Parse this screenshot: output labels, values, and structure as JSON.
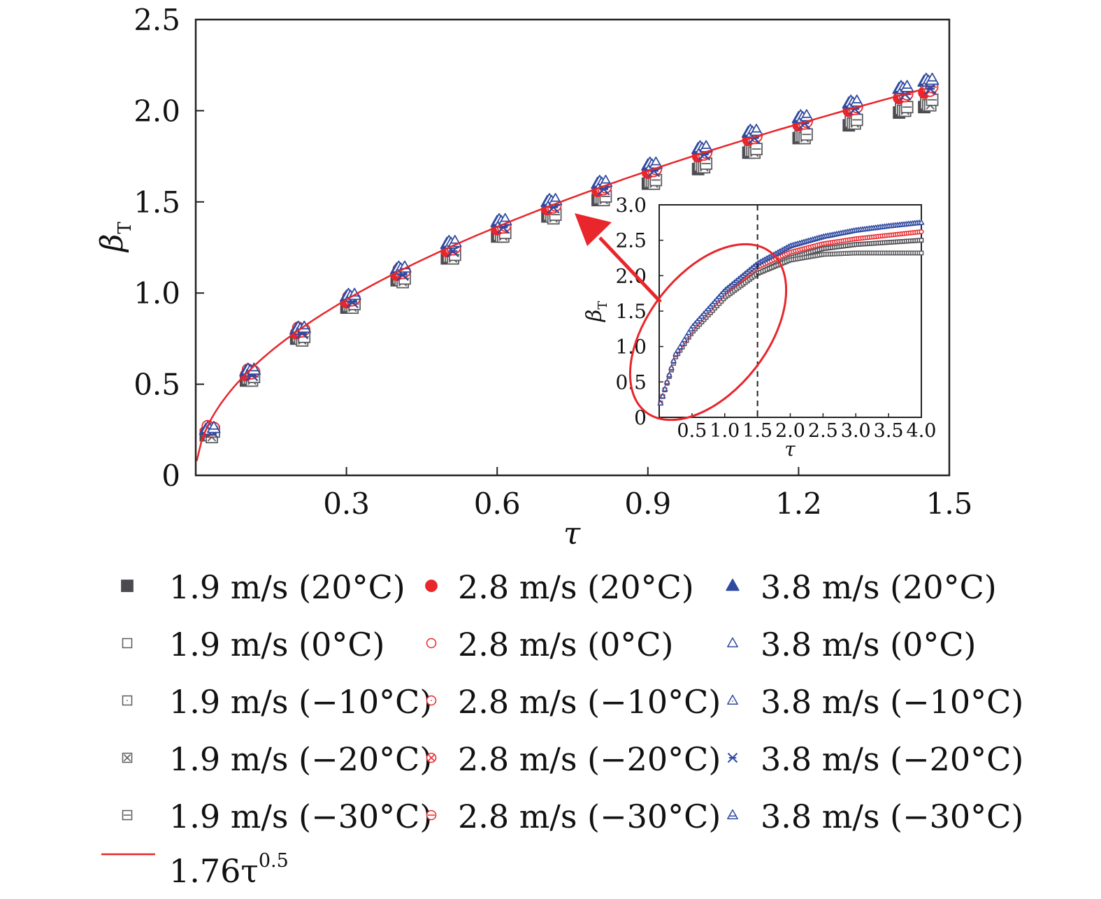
{
  "chart_data": [
    {
      "type": "scatter",
      "xlabel": "τ",
      "ylabel": "β",
      "ylabel_subscript": "T",
      "xlim": [
        0,
        1.5
      ],
      "ylim": [
        0,
        2.5
      ],
      "xticks": [
        "0.3",
        "0.6",
        "0.9",
        "1.2",
        "1.5"
      ],
      "xtick_values": [
        0.3,
        0.6,
        0.9,
        1.2,
        1.5
      ],
      "yticks": [
        "0",
        "0.5",
        "1.0",
        "1.5",
        "2.0",
        "2.5"
      ],
      "ytick_values": [
        0,
        0.5,
        1.0,
        1.5,
        2.0,
        2.5
      ],
      "grid": false,
      "legend_placement": "below",
      "x": [
        0.02,
        0.1,
        0.2,
        0.3,
        0.4,
        0.5,
        0.6,
        0.7,
        0.8,
        0.9,
        1.0,
        1.1,
        1.2,
        1.3,
        1.4,
        1.45
      ],
      "series": [
        {
          "name": "1.9 m/s (20°C)",
          "color": "#4a4a50",
          "marker": "square-filled",
          "values": [
            0.22,
            0.52,
            0.75,
            0.92,
            1.07,
            1.19,
            1.31,
            1.42,
            1.51,
            1.6,
            1.68,
            1.77,
            1.85,
            1.92,
            1.99,
            2.02
          ]
        },
        {
          "name": "1.9 m/s (0°C)",
          "color": "#5a5a5e",
          "marker": "square-open",
          "values": [
            0.23,
            0.53,
            0.76,
            0.93,
            1.08,
            1.2,
            1.32,
            1.43,
            1.52,
            1.61,
            1.7,
            1.78,
            1.86,
            1.94,
            2.01,
            2.04
          ]
        },
        {
          "name": "1.9 m/s (−10°C)",
          "color": "#5a5a5e",
          "marker": "square-dot",
          "values": [
            0.22,
            0.53,
            0.75,
            0.93,
            1.07,
            1.2,
            1.31,
            1.42,
            1.52,
            1.61,
            1.69,
            1.78,
            1.86,
            1.93,
            2.0,
            2.03
          ]
        },
        {
          "name": "1.9 m/s (−20°C)",
          "color": "#5a5a5e",
          "marker": "square-x",
          "values": [
            0.21,
            0.52,
            0.74,
            0.92,
            1.06,
            1.19,
            1.31,
            1.41,
            1.51,
            1.6,
            1.69,
            1.77,
            1.85,
            1.93,
            2.0,
            2.03
          ]
        },
        {
          "name": "1.9 m/s (−30°C)",
          "color": "#5a5a5e",
          "marker": "square-line",
          "values": [
            0.24,
            0.54,
            0.76,
            0.94,
            1.08,
            1.21,
            1.33,
            1.43,
            1.53,
            1.62,
            1.71,
            1.79,
            1.87,
            1.95,
            2.02,
            2.06
          ]
        },
        {
          "name": "2.8 m/s (20°C)",
          "color": "#e8262b",
          "marker": "circle-filled",
          "values": [
            0.24,
            0.55,
            0.78,
            0.95,
            1.1,
            1.23,
            1.35,
            1.46,
            1.56,
            1.66,
            1.75,
            1.84,
            1.92,
            2.0,
            2.07,
            2.1
          ]
        },
        {
          "name": "2.8 m/s (0°C)",
          "color": "#e8262b",
          "marker": "circle-open",
          "values": [
            0.27,
            0.58,
            0.81,
            0.98,
            1.13,
            1.26,
            1.38,
            1.49,
            1.59,
            1.69,
            1.78,
            1.87,
            1.95,
            2.03,
            2.1,
            2.14
          ]
        },
        {
          "name": "2.8 m/s (−10°C)",
          "color": "#e8262b",
          "marker": "circle-dot",
          "values": [
            0.25,
            0.56,
            0.79,
            0.96,
            1.11,
            1.24,
            1.36,
            1.47,
            1.57,
            1.67,
            1.76,
            1.85,
            1.93,
            2.01,
            2.08,
            2.12
          ]
        },
        {
          "name": "2.8 m/s (−20°C)",
          "color": "#e8262b",
          "marker": "circle-x",
          "values": [
            0.25,
            0.56,
            0.79,
            0.96,
            1.11,
            1.24,
            1.36,
            1.47,
            1.57,
            1.67,
            1.76,
            1.85,
            1.93,
            2.01,
            2.08,
            2.11
          ]
        },
        {
          "name": "2.8 m/s (−30°C)",
          "color": "#e8262b",
          "marker": "circle-line",
          "values": [
            0.26,
            0.57,
            0.8,
            0.97,
            1.12,
            1.25,
            1.37,
            1.48,
            1.58,
            1.68,
            1.77,
            1.86,
            1.94,
            2.02,
            2.09,
            2.13
          ]
        },
        {
          "name": "3.8 m/s (20°C)",
          "color": "#2f4aa0",
          "marker": "triangle-filled",
          "values": [
            0.25,
            0.57,
            0.8,
            0.98,
            1.13,
            1.27,
            1.39,
            1.5,
            1.6,
            1.7,
            1.79,
            1.88,
            1.96,
            2.04,
            2.12,
            2.16
          ]
        },
        {
          "name": "3.8 m/s (0°C)",
          "color": "#2f4aa0",
          "marker": "triangle-open",
          "values": [
            0.26,
            0.58,
            0.81,
            0.99,
            1.14,
            1.28,
            1.4,
            1.51,
            1.61,
            1.71,
            1.8,
            1.89,
            1.97,
            2.05,
            2.13,
            2.17
          ]
        },
        {
          "name": "3.8 m/s (−10°C)",
          "color": "#2f4aa0",
          "marker": "triangle-dot",
          "values": [
            0.25,
            0.57,
            0.8,
            0.98,
            1.13,
            1.27,
            1.39,
            1.5,
            1.6,
            1.7,
            1.79,
            1.88,
            1.96,
            2.04,
            2.12,
            2.16
          ]
        },
        {
          "name": "3.8 m/s (−20°C)",
          "color": "#2f4aa0",
          "marker": "star-x",
          "values": [
            0.24,
            0.55,
            0.78,
            0.95,
            1.1,
            1.23,
            1.36,
            1.47,
            1.57,
            1.67,
            1.76,
            1.85,
            1.93,
            2.01,
            2.09,
            2.12
          ]
        },
        {
          "name": "3.8 m/s (−30°C)",
          "color": "#2f4aa0",
          "marker": "triangle-line",
          "values": [
            0.26,
            0.58,
            0.81,
            0.99,
            1.14,
            1.28,
            1.4,
            1.51,
            1.61,
            1.71,
            1.8,
            1.89,
            1.97,
            2.05,
            2.13,
            2.17
          ]
        }
      ],
      "fit": {
        "name": "1.76τ",
        "name_superscript": "0.5",
        "coefficient": 1.76,
        "exponent": 0.5,
        "color": "#e8262b"
      }
    },
    {
      "type": "scatter",
      "role": "inset",
      "xlabel": "τ",
      "ylabel": "β",
      "ylabel_subscript": "T",
      "xlim": [
        0,
        4.0
      ],
      "ylim": [
        0,
        3.0
      ],
      "xticks": [
        "0.5",
        "1.0",
        "1.5",
        "2.0",
        "2.5",
        "3.0",
        "3.5",
        "4.0"
      ],
      "xtick_values": [
        0.5,
        1.0,
        1.5,
        2.0,
        2.5,
        3.0,
        3.5,
        4.0
      ],
      "yticks": [
        "0",
        "0.5",
        "1.0",
        "1.5",
        "2.0",
        "2.5",
        "3.0"
      ],
      "ytick_values": [
        0,
        0.5,
        1.0,
        1.5,
        2.0,
        2.5,
        3.0
      ],
      "dashed_line_x": 1.5,
      "x": [
        0.02,
        0.25,
        0.5,
        1.0,
        1.5,
        2.0,
        2.5,
        3.0,
        3.5,
        4.0
      ],
      "series": [
        {
          "name": "1.9 m/s (20°C)",
          "color": "#4a4a50",
          "values": [
            0.2,
            0.85,
            1.2,
            1.69,
            2.03,
            2.25,
            2.38,
            2.44,
            2.47,
            2.5
          ]
        },
        {
          "name": "1.9 m/s (−30°C)",
          "color": "#5a5a5e",
          "values": [
            0.2,
            0.85,
            1.2,
            1.69,
            2.03,
            2.22,
            2.3,
            2.32,
            2.32,
            2.32
          ]
        },
        {
          "name": "2.8 m/s (20°C)",
          "color": "#e8262b",
          "values": [
            0.2,
            0.88,
            1.24,
            1.76,
            2.12,
            2.33,
            2.45,
            2.52,
            2.57,
            2.62
          ]
        },
        {
          "name": "3.8 m/s (20°C)",
          "color": "#2f4aa0",
          "values": [
            0.2,
            0.89,
            1.27,
            1.79,
            2.17,
            2.42,
            2.55,
            2.64,
            2.7,
            2.75
          ]
        }
      ]
    }
  ]
}
